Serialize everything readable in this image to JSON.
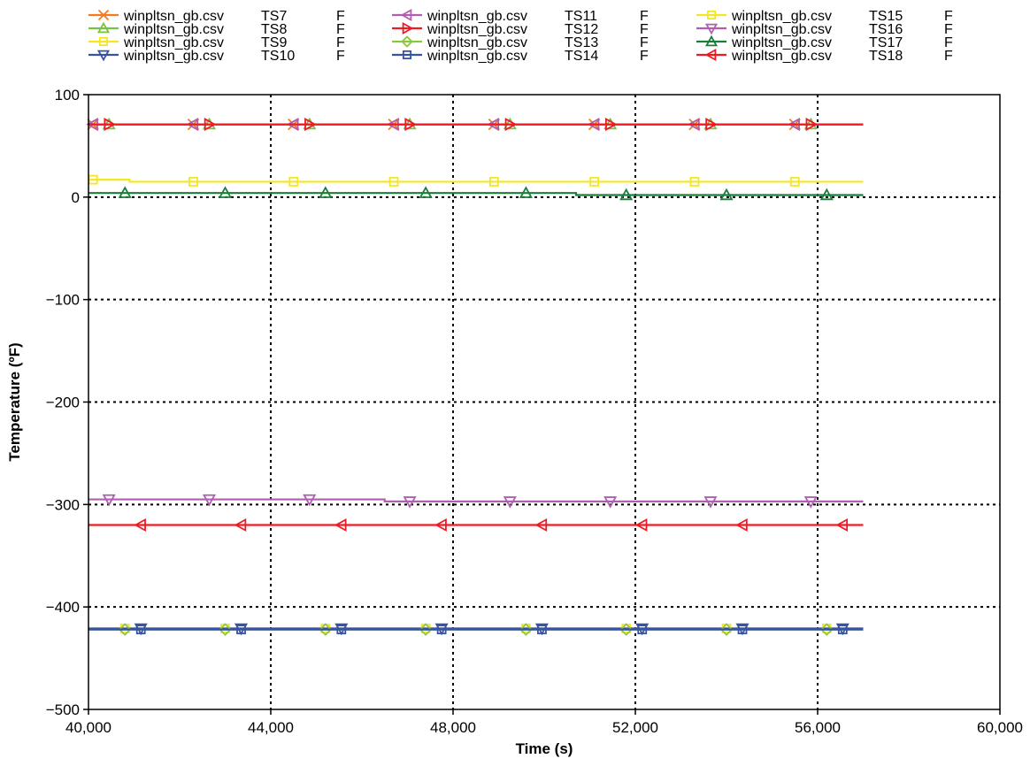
{
  "chart_data": {
    "type": "line",
    "xlabel": "Time (s)",
    "ylabel": "Temperature (ºF)",
    "xlim": [
      40000,
      60000
    ],
    "ylim": [
      -500,
      100
    ],
    "x_ticks": [
      40000,
      44000,
      48000,
      52000,
      56000,
      60000
    ],
    "x_tick_labels": [
      "40,000",
      "44,000",
      "48,000",
      "52,000",
      "56,000",
      "60,000"
    ],
    "y_ticks": [
      -500,
      -400,
      -300,
      -200,
      -100,
      0,
      100
    ],
    "y_tick_labels": [
      "−500",
      "−400",
      "−300",
      "−200",
      "−100",
      "0",
      "100"
    ],
    "grid": "dotted",
    "legend_position": "top",
    "series": [
      {
        "name": "TS7",
        "file": "winpltsn_gb.csv",
        "unit": "F",
        "color": "#f47920",
        "marker": "x",
        "x": [
          40000,
          57000
        ],
        "y": [
          71,
          71
        ]
      },
      {
        "name": "TS8",
        "file": "winpltsn_gb.csv",
        "unit": "F",
        "color": "#7ac143",
        "marker": "tri-up",
        "x": [
          40000,
          57000
        ],
        "y": [
          71,
          71
        ]
      },
      {
        "name": "TS9",
        "file": "winpltsn_gb.csv",
        "unit": "F",
        "color": "#f5e625",
        "marker": "square",
        "x": [
          40000,
          57000
        ],
        "y": [
          -421,
          -421
        ]
      },
      {
        "name": "TS10",
        "file": "winpltsn_gb.csv",
        "unit": "F",
        "color": "#3953a4",
        "marker": "tri-down",
        "x": [
          40000,
          57000
        ],
        "y": [
          -421,
          -421
        ]
      },
      {
        "name": "TS11",
        "file": "winpltsn_gb.csv",
        "unit": "F",
        "color": "#b05fb0",
        "marker": "tri-left",
        "x": [
          40000,
          57000
        ],
        "y": [
          71,
          71
        ]
      },
      {
        "name": "TS12",
        "file": "winpltsn_gb.csv",
        "unit": "F",
        "color": "#ed1c24",
        "marker": "tri-right",
        "x": [
          40000,
          57000
        ],
        "y": [
          71,
          71
        ]
      },
      {
        "name": "TS13",
        "file": "winpltsn_gb.csv",
        "unit": "F",
        "color": "#8dc63f",
        "marker": "diamond",
        "x": [
          40000,
          57000
        ],
        "y": [
          -422,
          -422
        ]
      },
      {
        "name": "TS14",
        "file": "winpltsn_gb.csv",
        "unit": "F",
        "color": "#3953a4",
        "marker": "square",
        "x": [
          40000,
          57000
        ],
        "y": [
          -422,
          -422
        ]
      },
      {
        "name": "TS15",
        "file": "winpltsn_gb.csv",
        "unit": "F",
        "color": "#f5e625",
        "marker": "square",
        "x": [
          40000,
          40900,
          40900,
          57000
        ],
        "y": [
          17,
          17,
          15,
          15
        ]
      },
      {
        "name": "TS16",
        "file": "winpltsn_gb.csv",
        "unit": "F",
        "color": "#b05fb0",
        "marker": "tri-down",
        "x": [
          40000,
          46500,
          46500,
          57000
        ],
        "y": [
          -295,
          -295,
          -297,
          -297
        ]
      },
      {
        "name": "TS17",
        "file": "winpltsn_gb.csv",
        "unit": "F",
        "color": "#1a7d3a",
        "marker": "tri-up",
        "x": [
          40000,
          50700,
          50700,
          57000
        ],
        "y": [
          4,
          4,
          2,
          2
        ]
      },
      {
        "name": "TS18",
        "file": "winpltsn_gb.csv",
        "unit": "F",
        "color": "#ed1c24",
        "marker": "tri-left",
        "x": [
          40000,
          57000
        ],
        "y": [
          -320,
          -320
        ]
      }
    ]
  }
}
